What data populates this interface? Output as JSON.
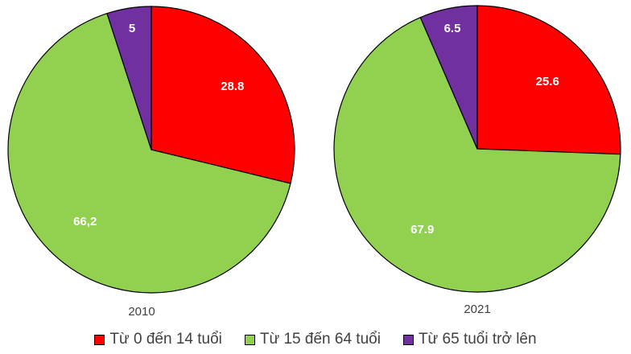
{
  "chart_data": {
    "type": "pie",
    "categories": [
      "Từ 0 đến 14 tuổi",
      "Từ 15 đến 64 tuổi",
      "Từ 65 tuổi trở lên"
    ],
    "colors": [
      "#ff0000",
      "#92d050",
      "#7030a0"
    ],
    "legend_position": "bottom",
    "charts": [
      {
        "year": "2010",
        "values": [
          28.8,
          66.2,
          5
        ],
        "data_labels": [
          "28.8",
          "66,2",
          "5"
        ]
      },
      {
        "year": "2021",
        "values": [
          25.6,
          67.9,
          6.5
        ],
        "data_labels": [
          "25.6",
          "67.9",
          "6.5"
        ]
      }
    ]
  }
}
